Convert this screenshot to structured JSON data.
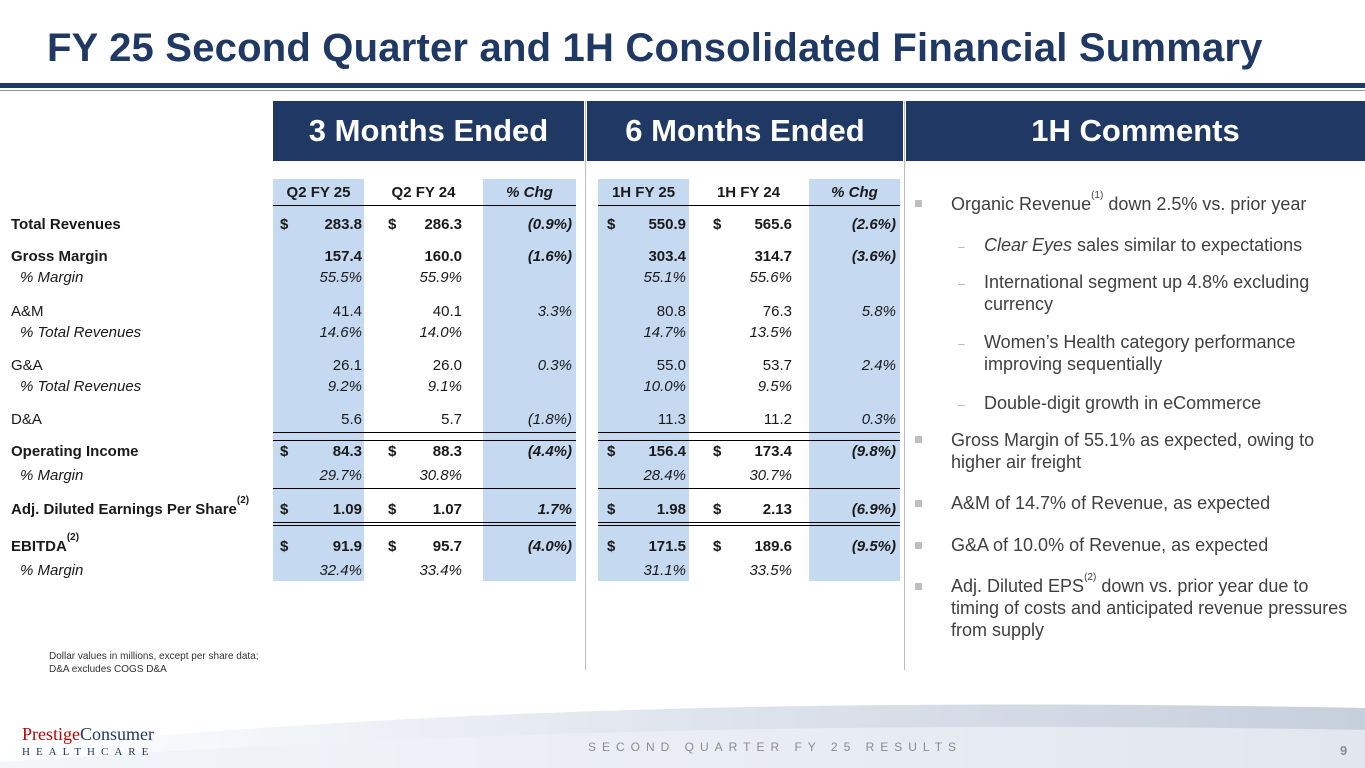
{
  "title": "FY 25 Second Quarter and 1H Consolidated Financial Summary",
  "headers": {
    "three_months": "3 Months Ended",
    "six_months": "6 Months Ended",
    "comments": "1H Comments"
  },
  "columns": [
    "Q2 FY 25",
    "Q2 FY 24",
    "% Chg",
    "1H FY 25",
    "1H FY 24",
    "% Chg"
  ],
  "currency": "$",
  "rows": {
    "total_revenues": {
      "label": "Total Revenues",
      "v": [
        "283.8",
        "286.3",
        "(0.9%)",
        "550.9",
        "565.6",
        "(2.6%)"
      ]
    },
    "gross_margin": {
      "label": "Gross Margin",
      "v": [
        "157.4",
        "160.0",
        "(1.6%)",
        "303.4",
        "314.7",
        "(3.6%)"
      ]
    },
    "gm_pct": {
      "label": "% Margin",
      "v": [
        "55.5%",
        "55.9%",
        "",
        "55.1%",
        "55.6%",
        ""
      ]
    },
    "am": {
      "label": "A&M",
      "v": [
        "41.4",
        "40.1",
        "3.3%",
        "80.8",
        "76.3",
        "5.8%"
      ]
    },
    "am_pct": {
      "label": "% Total Revenues",
      "v": [
        "14.6%",
        "14.0%",
        "",
        "14.7%",
        "13.5%",
        ""
      ]
    },
    "ga": {
      "label": "G&A",
      "v": [
        "26.1",
        "26.0",
        "0.3%",
        "55.0",
        "53.7",
        "2.4%"
      ]
    },
    "ga_pct": {
      "label": "% Total Revenues",
      "v": [
        "9.2%",
        "9.1%",
        "",
        "10.0%",
        "9.5%",
        ""
      ]
    },
    "da": {
      "label": "D&A",
      "v": [
        "5.6",
        "5.7",
        "(1.8%)",
        "11.3",
        "11.2",
        "0.3%"
      ]
    },
    "op_income": {
      "label": "Operating Income",
      "v": [
        "84.3",
        "88.3",
        "(4.4%)",
        "156.4",
        "173.4",
        "(9.8%)"
      ]
    },
    "op_pct": {
      "label": "% Margin",
      "v": [
        "29.7%",
        "30.8%",
        "",
        "28.4%",
        "30.7%",
        ""
      ]
    },
    "eps": {
      "label": "Adj. Diluted Earnings Per Share",
      "sup": "(2)",
      "v": [
        "1.09",
        "1.07",
        "1.7%",
        "1.98",
        "2.13",
        "(6.9%)"
      ]
    },
    "ebitda": {
      "label": "EBITDA",
      "sup": "(2)",
      "v": [
        "91.9",
        "95.7",
        "(4.0%)",
        "171.5",
        "189.6",
        "(9.5%)"
      ]
    },
    "ebitda_pct": {
      "label": "% Margin",
      "v": [
        "32.4%",
        "33.4%",
        "",
        "31.1%",
        "33.5%",
        ""
      ]
    }
  },
  "footnote": {
    "line1": "Dollar values in millions, except per share data;",
    "line2": "D&A excludes COGS D&A"
  },
  "comments": {
    "c1": {
      "pre": "Organic Revenue",
      "sup": "(1)",
      "post": " down 2.5% vs. prior year"
    },
    "s1": {
      "italic": "Clear Eyes",
      "rest": " sales similar to expectations"
    },
    "s2": "International segment up 4.8% excluding currency",
    "s3": "Women’s Health category performance improving sequentially",
    "s4": "Double-digit growth in eCommerce",
    "c2": "Gross Margin of 55.1% as expected, owing to higher air freight",
    "c3": "A&M of 14.7% of Revenue, as expected",
    "c4": "G&A of 10.0% of Revenue, as expected",
    "c5": {
      "pre": "Adj. Diluted EPS",
      "sup": "(2)",
      "post": " down vs. prior year due to timing of costs and anticipated revenue pressures from supply"
    }
  },
  "footer": {
    "logo_word1": "Prestige",
    "logo_word2": "Consumer",
    "logo_sub": "HEALTHCARE",
    "text": "SECOND QUARTER FY 25 RESULTS",
    "page": "9"
  },
  "colors": {
    "navy": "#1f3864",
    "shade": "#c5d9f1"
  }
}
